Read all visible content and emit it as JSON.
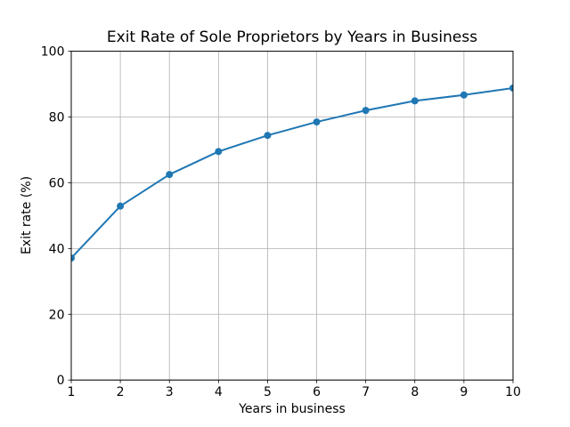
{
  "figure": {
    "background": "#ffffff"
  },
  "chart_data": {
    "type": "line",
    "title": "Exit Rate of Sole Proprietors by Years in Business",
    "xlabel": "Years in business",
    "ylabel": "Exit rate (%)",
    "x": [
      1,
      2,
      3,
      4,
      5,
      6,
      7,
      8,
      9,
      10
    ],
    "values": [
      37.1,
      52.9,
      62.5,
      69.5,
      74.4,
      78.5,
      82.0,
      84.9,
      86.7,
      88.8
    ],
    "xlim": [
      1,
      10
    ],
    "ylim": [
      0,
      100
    ],
    "xticks": [
      1,
      2,
      3,
      4,
      5,
      6,
      7,
      8,
      9,
      10
    ],
    "yticks": [
      0,
      20,
      40,
      60,
      80,
      100
    ],
    "grid": true,
    "legend_position": "none",
    "series_color": "#1f77b4",
    "grid_color": "#b0b0b0",
    "spine_color": "#000000",
    "marker": "circle",
    "marker_radius": 4,
    "line_width": 2
  }
}
